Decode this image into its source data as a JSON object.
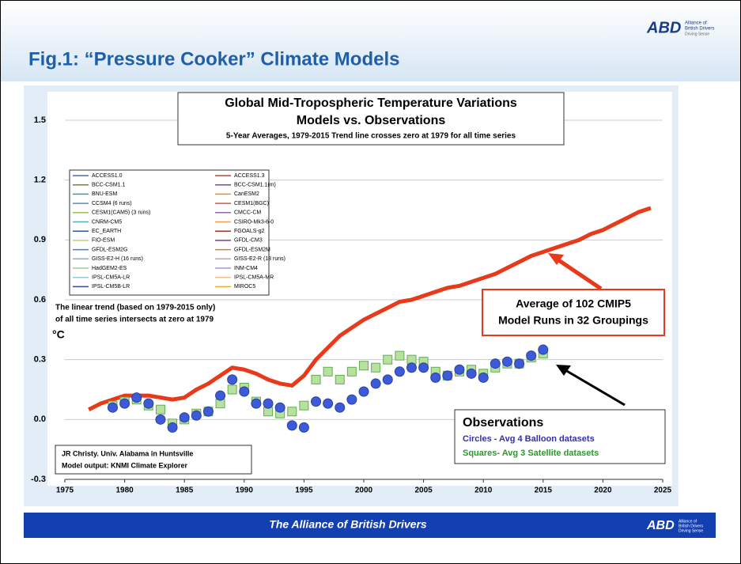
{
  "header": {
    "title": "Fig.1: “Pressure Cooker” Climate Models",
    "logo": {
      "mark": "ABD",
      "line1": "Alliance of",
      "line2": "British Drivers",
      "line3": "Driving Sense"
    }
  },
  "footer": {
    "text": "The Alliance of British Drivers",
    "logo": {
      "mark": "ABD",
      "line1": "Alliance of",
      "line2": "British Drivers",
      "line3": "Driving Sense"
    }
  },
  "chart_data": {
    "type": "line",
    "title": "Global Mid-Tropospheric Temperature Variations",
    "title2": "Models vs. Observations",
    "subtitle": "5-Year Averages, 1979-2015 Trend line crosses zero at 1979 for all time series",
    "ylabel": "°C",
    "xlim": [
      1975,
      2025
    ],
    "xticks": [
      1975,
      1980,
      1985,
      1990,
      1995,
      2000,
      2005,
      2010,
      2015,
      2020,
      2025
    ],
    "ylim": [
      -0.3,
      1.5
    ],
    "yticks": [
      -0.3,
      {
        "value": 0,
        "label": "0.0"
      },
      0.3,
      0.6,
      0.9,
      1.2,
      1.5
    ],
    "grid": true,
    "models": [
      {
        "name": "ACCESS1.0",
        "color": "#4a6fa5"
      },
      {
        "name": "ACCESS1.3",
        "color": "#b04a3a"
      },
      {
        "name": "BCC-CSM1.1",
        "color": "#6d8a3a"
      },
      {
        "name": "BCC-CSM1.1(m)",
        "color": "#7a4a8a"
      },
      {
        "name": "BNU-ESM",
        "color": "#3a9aa8"
      },
      {
        "name": "CanESM2",
        "color": "#e0902a"
      },
      {
        "name": "CCSM4 (6 runs)",
        "color": "#5a8ac8"
      },
      {
        "name": "CESM1(BGC)",
        "color": "#c85a5a"
      },
      {
        "name": "CESM1(CAM5) (3 runs)",
        "color": "#9ac05a"
      },
      {
        "name": "CMCC-CM",
        "color": "#8a6ab0"
      },
      {
        "name": "CNRM-CM5",
        "color": "#4ab0c0"
      },
      {
        "name": "CSIRO-Mk3-6-0",
        "color": "#f0a050"
      },
      {
        "name": "EC_EARTH",
        "color": "#2a5a9a"
      },
      {
        "name": "FGOALS-g2",
        "color": "#9a3a2a"
      },
      {
        "name": "FIO-ESM",
        "color": "#c0d070"
      },
      {
        "name": "GFDL-CM3",
        "color": "#6a4a7a"
      },
      {
        "name": "GFDL-ESM2G",
        "color": "#3a8a9a"
      },
      {
        "name": "GFDL-ESM2M",
        "color": "#d08040"
      },
      {
        "name": "GISS-E2-H (16 runs)",
        "color": "#8aaad8"
      },
      {
        "name": "GISS-E2-R (18 runs)",
        "color": "#d89a9a"
      },
      {
        "name": "HadGEM2-ES",
        "color": "#a8c890"
      },
      {
        "name": "INM-CM4",
        "color": "#a898c8"
      },
      {
        "name": "IPSL-CM5A-LR",
        "color": "#90c8d8"
      },
      {
        "name": "IPSL-CM5A-MR",
        "color": "#f0c090"
      },
      {
        "name": "IPSL-CM5B-LR",
        "color": "#3a4a8a"
      },
      {
        "name": "MIROC5",
        "color": "#e8b030"
      }
    ],
    "series": [
      {
        "name": "Average",
        "color": "#e8391a",
        "style": "line",
        "x": [
          1977,
          1978,
          1979,
          1980,
          1981,
          1982,
          1983,
          1984,
          1985,
          1986,
          1987,
          1988,
          1989,
          1990,
          1991,
          1992,
          1993,
          1994,
          1995,
          1996,
          1997,
          1998,
          1999,
          2000,
          2001,
          2002,
          2003,
          2004,
          2005,
          2006,
          2007,
          2008,
          2009,
          2010,
          2011,
          2012,
          2013,
          2014,
          2015,
          2016,
          2017,
          2018,
          2019,
          2020,
          2021,
          2022,
          2023,
          2024
        ],
        "values": [
          0.05,
          0.08,
          0.1,
          0.12,
          0.12,
          0.12,
          0.11,
          0.1,
          0.11,
          0.15,
          0.18,
          0.22,
          0.26,
          0.25,
          0.23,
          0.2,
          0.18,
          0.17,
          0.22,
          0.3,
          0.36,
          0.42,
          0.46,
          0.5,
          0.53,
          0.56,
          0.59,
          0.6,
          0.62,
          0.64,
          0.66,
          0.67,
          0.69,
          0.71,
          0.73,
          0.76,
          0.79,
          0.82,
          0.84,
          0.86,
          0.88,
          0.9,
          0.93,
          0.95,
          0.98,
          1.01,
          1.04,
          1.06
        ]
      },
      {
        "name": "Satellites",
        "color": "#b8e0a0",
        "style": "square",
        "x": [
          1979,
          1980,
          1981,
          1982,
          1983,
          1984,
          1985,
          1986,
          1987,
          1988,
          1989,
          1990,
          1991,
          1992,
          1993,
          1994,
          1995,
          1996,
          1997,
          1998,
          1999,
          2000,
          2001,
          2002,
          2003,
          2004,
          2005,
          2006,
          2007,
          2008,
          2009,
          2010,
          2011,
          2012,
          2013,
          2014,
          2015
        ],
        "values": [
          0.07,
          0.09,
          0.1,
          0.07,
          0.05,
          -0.02,
          0.0,
          0.03,
          0.04,
          0.08,
          0.15,
          0.16,
          0.09,
          0.04,
          0.03,
          0.04,
          0.07,
          0.2,
          0.24,
          0.2,
          0.24,
          0.27,
          0.26,
          0.3,
          0.32,
          0.3,
          0.29,
          0.24,
          0.22,
          0.24,
          0.25,
          0.23,
          0.26,
          0.28,
          0.28,
          0.31,
          0.33
        ]
      },
      {
        "name": "Balloons",
        "color": "#3d5bd9",
        "style": "circle",
        "x": [
          1979,
          1980,
          1981,
          1982,
          1983,
          1984,
          1985,
          1986,
          1987,
          1988,
          1989,
          1990,
          1991,
          1992,
          1993,
          1994,
          1995,
          1996,
          1997,
          1998,
          1999,
          2000,
          2001,
          2002,
          2003,
          2004,
          2005,
          2006,
          2007,
          2008,
          2009,
          2010,
          2011,
          2012,
          2013,
          2014,
          2015
        ],
        "values": [
          0.06,
          0.08,
          0.11,
          0.08,
          0.0,
          -0.04,
          0.01,
          0.02,
          0.04,
          0.12,
          0.2,
          0.14,
          0.08,
          0.08,
          0.06,
          -0.03,
          -0.04,
          0.09,
          0.08,
          0.06,
          0.1,
          0.14,
          0.18,
          0.2,
          0.24,
          0.26,
          0.26,
          0.21,
          0.22,
          0.25,
          0.23,
          0.21,
          0.28,
          0.29,
          0.28,
          0.32,
          0.35
        ]
      }
    ],
    "annotations": {
      "average": [
        "Average of 102 CMIP5",
        "Model Runs in 32 Groupings"
      ],
      "trend": [
        "The linear trend (based on 1979-2015 only)",
        "of all time series intersects at zero at 1979"
      ],
      "observations": "Observations",
      "circles": "Circles - Avg 4 Balloon datasets",
      "squares": "Squares- Avg 3 Satellite datasets",
      "credit": [
        "JR Christy. Univ. Alabama in Huntsville",
        "Model output: KNMI Climate Explorer"
      ]
    }
  }
}
